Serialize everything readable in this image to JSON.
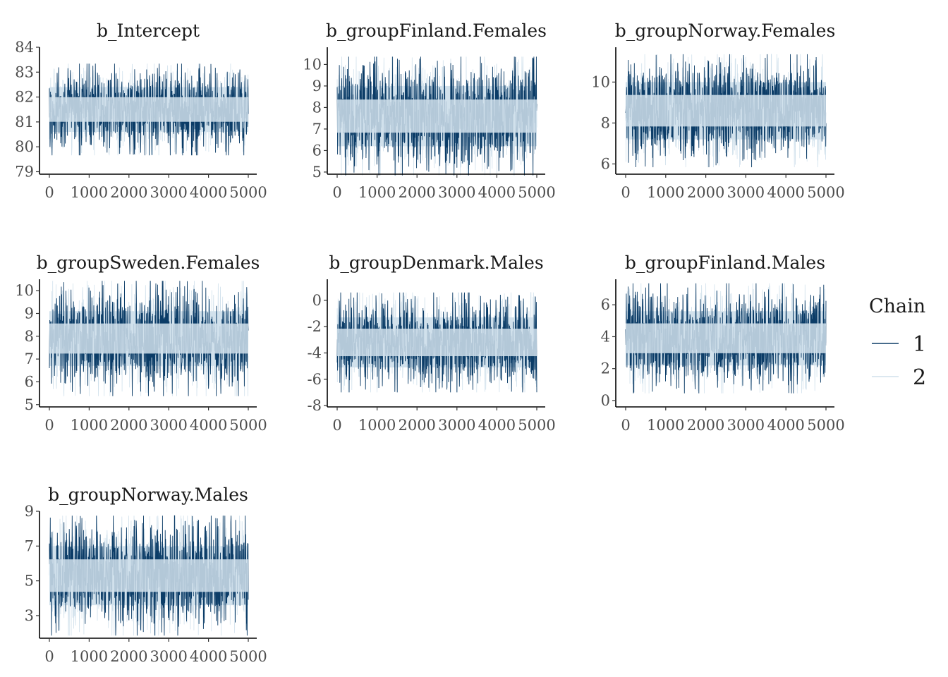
{
  "chart_data": {
    "type": "line",
    "kind": "mcmc-trace",
    "iterations": 5000,
    "x_ticks": [
      0,
      1000,
      2000,
      3000,
      4000,
      5000
    ],
    "legend": {
      "title": "Chain",
      "entries": [
        "1",
        "2"
      ],
      "position": "right"
    },
    "colors": {
      "1": "#0b3c67",
      "2": "#d1e1ec"
    },
    "grid": false,
    "panels": [
      {
        "title": "b_Intercept",
        "ylim": [
          78.9,
          84.0
        ],
        "y_ticks": [
          79,
          80,
          81,
          82,
          83,
          84
        ],
        "center": 81.5,
        "inner": 0.9,
        "spread": 1.6
      },
      {
        "title": "b_groupFinland.Females",
        "ylim": [
          4.9,
          10.8
        ],
        "y_ticks": [
          5,
          6,
          7,
          8,
          9,
          10
        ],
        "center": 7.6,
        "inner": 1.4,
        "spread": 2.4
      },
      {
        "title": "b_groupNorway.Females",
        "ylim": [
          5.5,
          11.7
        ],
        "y_ticks": [
          6,
          8,
          10
        ],
        "center": 8.6,
        "inner": 1.4,
        "spread": 2.4
      },
      {
        "title": "b_groupSweden.Females",
        "ylim": [
          4.9,
          10.5
        ],
        "y_ticks": [
          5,
          6,
          7,
          8,
          9,
          10
        ],
        "center": 7.9,
        "inner": 1.2,
        "spread": 2.2
      },
      {
        "title": "b_groupDenmark.Males",
        "ylim": [
          -8.1,
          1.6
        ],
        "y_ticks": [
          -8,
          -6,
          -4,
          -2,
          0
        ],
        "center": -3.2,
        "inner": 1.9,
        "spread": 3.3
      },
      {
        "title": "b_groupFinland.Males",
        "ylim": [
          -0.4,
          7.6
        ],
        "y_ticks": [
          0,
          2,
          4,
          6
        ],
        "center": 3.9,
        "inner": 1.7,
        "spread": 3.0
      },
      {
        "title": "b_groupNorway.Males",
        "ylim": [
          1.7,
          9.0
        ],
        "y_ticks": [
          3,
          5,
          7,
          9
        ],
        "center": 5.3,
        "inner": 1.7,
        "spread": 3.0
      }
    ]
  }
}
